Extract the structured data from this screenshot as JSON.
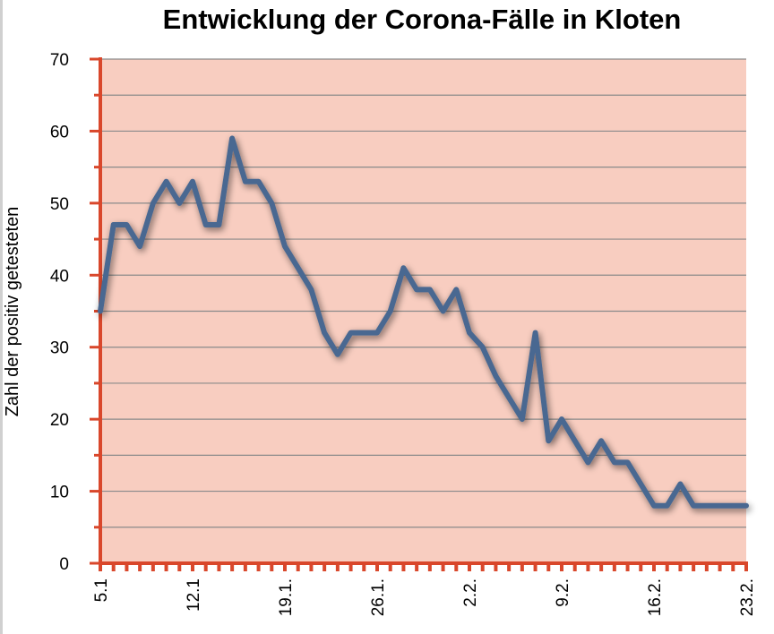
{
  "chart_data": {
    "type": "line",
    "title": "Entwicklung der Corona-Fälle in Kloten",
    "xlabel": "",
    "ylabel": "Zahl der positiv getesteten",
    "ylim": [
      0,
      70
    ],
    "yticks": [
      0,
      10,
      20,
      30,
      40,
      50,
      60,
      70
    ],
    "grid": true,
    "legend": "none",
    "x_tick_labels": [
      "5.1",
      "12.1",
      "19.1.",
      "26.1.",
      "2.2.",
      "9.2.",
      "16.2.",
      "23.2."
    ],
    "x": [
      "5.1",
      "6.1",
      "7.1",
      "8.1",
      "9.1",
      "10.1",
      "11.1",
      "12.1",
      "13.1",
      "14.1",
      "15.1",
      "16.1",
      "17.1",
      "18.1",
      "19.1",
      "20.1",
      "21.1",
      "22.1",
      "23.1",
      "24.1",
      "25.1",
      "26.1",
      "27.1",
      "28.1",
      "29.1",
      "30.1",
      "31.1",
      "1.2",
      "2.2",
      "3.2",
      "4.2",
      "5.2",
      "6.2",
      "7.2",
      "8.2",
      "9.2",
      "10.2",
      "11.2",
      "12.2",
      "13.2",
      "14.2",
      "15.2",
      "16.2",
      "17.2",
      "18.2",
      "19.2",
      "20.2",
      "21.2",
      "22.2",
      "23.2"
    ],
    "series": [
      {
        "name": "",
        "values": [
          35,
          47,
          47,
          44,
          50,
          53,
          50,
          53,
          47,
          47,
          59,
          53,
          53,
          50,
          44,
          41,
          38,
          32,
          29,
          32,
          32,
          32,
          35,
          41,
          38,
          38,
          35,
          38,
          32,
          30,
          26,
          23,
          20,
          32,
          17,
          20,
          17,
          14,
          17,
          14,
          14,
          11,
          8,
          8,
          11,
          8,
          8,
          8,
          8,
          8
        ]
      }
    ],
    "colors": {
      "plot_background": "#f8cdc0",
      "gridline": "#8a8a8a",
      "axis": "#d9472b",
      "line": "#4a6891"
    }
  }
}
